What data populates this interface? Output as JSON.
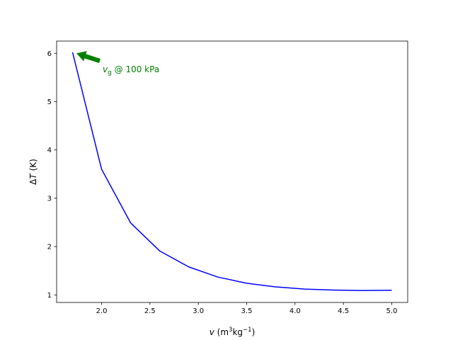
{
  "chart_data": {
    "type": "line",
    "x": [
      1.7,
      2.0,
      2.3,
      2.6,
      2.9,
      3.2,
      3.5,
      3.8,
      4.1,
      4.4,
      4.7,
      5.0
    ],
    "series": [
      {
        "values": [
          6.02,
          3.6,
          2.49,
          1.91,
          1.58,
          1.37,
          1.24,
          1.165,
          1.12,
          1.1,
          1.09,
          1.095
        ],
        "color": "#0000ff"
      }
    ],
    "xlim": [
      1.535,
      5.165
    ],
    "ylim": [
      0.843,
      6.253
    ],
    "xticks": [
      "2.0",
      "2.5",
      "3.0",
      "3.5",
      "4.0",
      "4.5",
      "5.0"
    ],
    "xtick_values": [
      2.0,
      2.5,
      3.0,
      3.5,
      4.0,
      4.5,
      5.0
    ],
    "yticks": [
      "1",
      "2",
      "3",
      "4",
      "5",
      "6"
    ],
    "ytick_values": [
      1,
      2,
      3,
      4,
      5,
      6
    ],
    "xlabel": {
      "var": "v",
      "units_open": " (m",
      "sup1": "3",
      "mid": "kg",
      "sup2": "−1",
      "close": ")"
    },
    "ylabel": {
      "delta": "Δ",
      "var": "T",
      "units": " (K)"
    },
    "annotation": {
      "var": "v",
      "sub": "g",
      "text": " @ 100 kPa",
      "color": "#008000",
      "target": [
        1.74,
        6.0
      ]
    },
    "grid": false
  }
}
